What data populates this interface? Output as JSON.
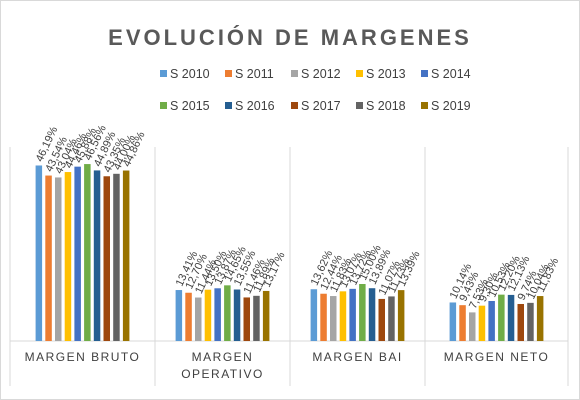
{
  "chart_data": {
    "type": "bar",
    "title": "EVOLUCIÓN  DE MARGENES",
    "categories": [
      [
        "MARGEN BRUTO"
      ],
      [
        "MARGEN",
        "OPERATIVO"
      ],
      [
        "MARGEN BAI"
      ],
      [
        "MARGEN NETO"
      ]
    ],
    "series": [
      {
        "name": "S 2010",
        "color": "#5B9BD5",
        "values": [
          46.19,
          13.41,
          13.62,
          10.14
        ],
        "labels": [
          "46,19%",
          "13,41%",
          "13,62%",
          "10,14%"
        ]
      },
      {
        "name": "S 2011",
        "color": "#ED7D31",
        "values": [
          43.54,
          12.7,
          12.44,
          9.43
        ],
        "labels": [
          "43,54%",
          "12,70%",
          "12,44%",
          "9,43%"
        ]
      },
      {
        "name": "S 2012",
        "color": "#A5A5A5",
        "values": [
          43.04,
          11.44,
          11.83,
          7.53
        ],
        "labels": [
          "43,04%",
          "11,44%",
          "11,83%",
          "7,53%"
        ]
      },
      {
        "name": "S 2013",
        "color": "#FFC000",
        "values": [
          44.46,
          13.5,
          13.07,
          9.3
        ],
        "labels": [
          "44,46%",
          "13,50%",
          "13,07%",
          "9,30%"
        ]
      },
      {
        "name": "S 2014",
        "color": "#4472C4",
        "values": [
          45.88,
          13.87,
          13.72,
          10.53
        ],
        "labels": [
          "45,88%",
          "13,87%",
          "13,72%",
          "10,53%"
        ]
      },
      {
        "name": "S 2015",
        "color": "#70AD47",
        "values": [
          46.56,
          14.65,
          15.0,
          12.2
        ],
        "labels": [
          "46,56%",
          "14,65%",
          "15,00%",
          "12,20%"
        ]
      },
      {
        "name": "S 2016",
        "color": "#255E91",
        "values": [
          44.89,
          13.55,
          13.89,
          12.13
        ],
        "labels": [
          "44,89%",
          "13,55%",
          "13,89%",
          "12,13%"
        ]
      },
      {
        "name": "S 2017",
        "color": "#9E480E",
        "values": [
          43.35,
          11.46,
          11.07,
          9.74
        ],
        "labels": [
          "43,35%",
          "11,46%",
          "11,07%",
          "9,74%"
        ]
      },
      {
        "name": "S 2018",
        "color": "#636363",
        "values": [
          44.0,
          11.89,
          11.73,
          10.04
        ],
        "labels": [
          "44,00%",
          "11,89%",
          "11,73%",
          "10,04%"
        ]
      },
      {
        "name": "S 2019",
        "color": "#997300",
        "values": [
          44.86,
          13.17,
          13.39,
          11.83
        ],
        "labels": [
          "44,86%",
          "13,17%",
          "13,39%",
          "11,83%"
        ]
      }
    ],
    "ylim": [
      0,
      50
    ],
    "legend_position": "top",
    "grid": false
  }
}
